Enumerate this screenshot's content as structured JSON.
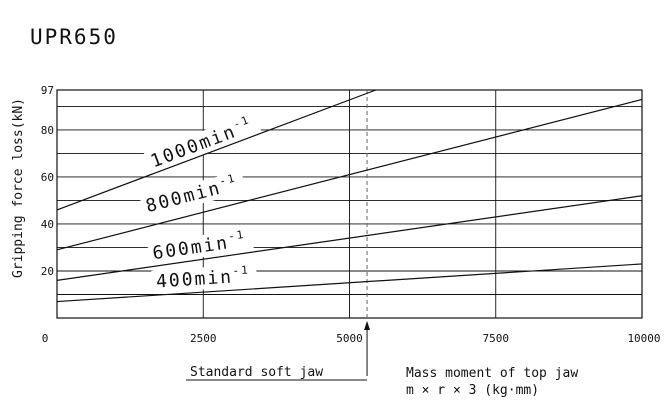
{
  "chart_data": {
    "type": "line",
    "title": "UPR650",
    "xlabel": "Mass moment of top jaw",
    "xlabel_formula": "m × r × 3 (kg·mm)",
    "ylabel": "Gripping force loss(kN)",
    "xlim": [
      0,
      10000
    ],
    "ylim": [
      0,
      97
    ],
    "x_ticks": [
      "0",
      "2500",
      "5000",
      "7500",
      "10000"
    ],
    "y_ticks": [
      "20",
      "40",
      "60",
      "80",
      "97"
    ],
    "grid": "horizontal every 10 kN, vertical at 2500 / 5000 / 7500",
    "reference_line": {
      "x": 5300,
      "label": "Standard soft jaw"
    },
    "series": [
      {
        "name": "1000",
        "unit": "min",
        "sup": "-1",
        "x": [
          0,
          5450
        ],
        "y": [
          46,
          97
        ],
        "label_x": 1650,
        "label_y": 64
      },
      {
        "name": "800",
        "unit": "min",
        "sup": "-1",
        "x": [
          0,
          10000
        ],
        "y": [
          29,
          93
        ],
        "label_x": 1550,
        "label_y": 45
      },
      {
        "name": "600",
        "unit": "min",
        "sup": "-1",
        "x": [
          0,
          10000
        ],
        "y": [
          16,
          52
        ],
        "label_x": 1650,
        "label_y": 25
      },
      {
        "name": "400",
        "unit": "min",
        "sup": "-1",
        "x": [
          0,
          10000
        ],
        "y": [
          7,
          23
        ],
        "label_x": 1700,
        "label_y": 13
      }
    ]
  }
}
